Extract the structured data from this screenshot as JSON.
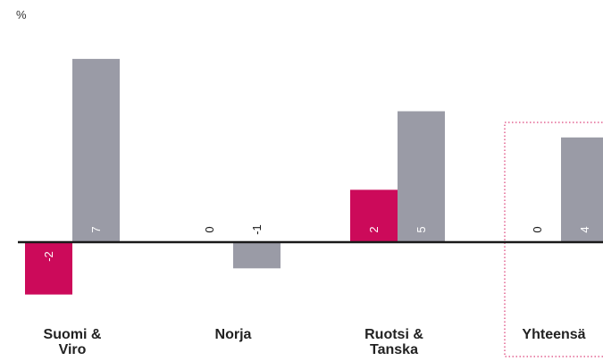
{
  "chart_data": {
    "type": "bar",
    "unit_label": "%",
    "categories": [
      "Suomi &\nViro",
      "Norja",
      "Ruotsi &\nTanska",
      "Yhteensä"
    ],
    "series": [
      {
        "values": [
          -2,
          0,
          2,
          0
        ],
        "color": "#cc0a5a"
      },
      {
        "values": [
          7,
          -1,
          5,
          4
        ],
        "color": "#9a9ba6"
      }
    ],
    "ylim": [
      -2,
      7
    ],
    "highlight_category": "Yhteensä",
    "highlight_color": "#d4145a",
    "axis_color": "#1a1a1a",
    "grid": false,
    "legend": "none"
  }
}
